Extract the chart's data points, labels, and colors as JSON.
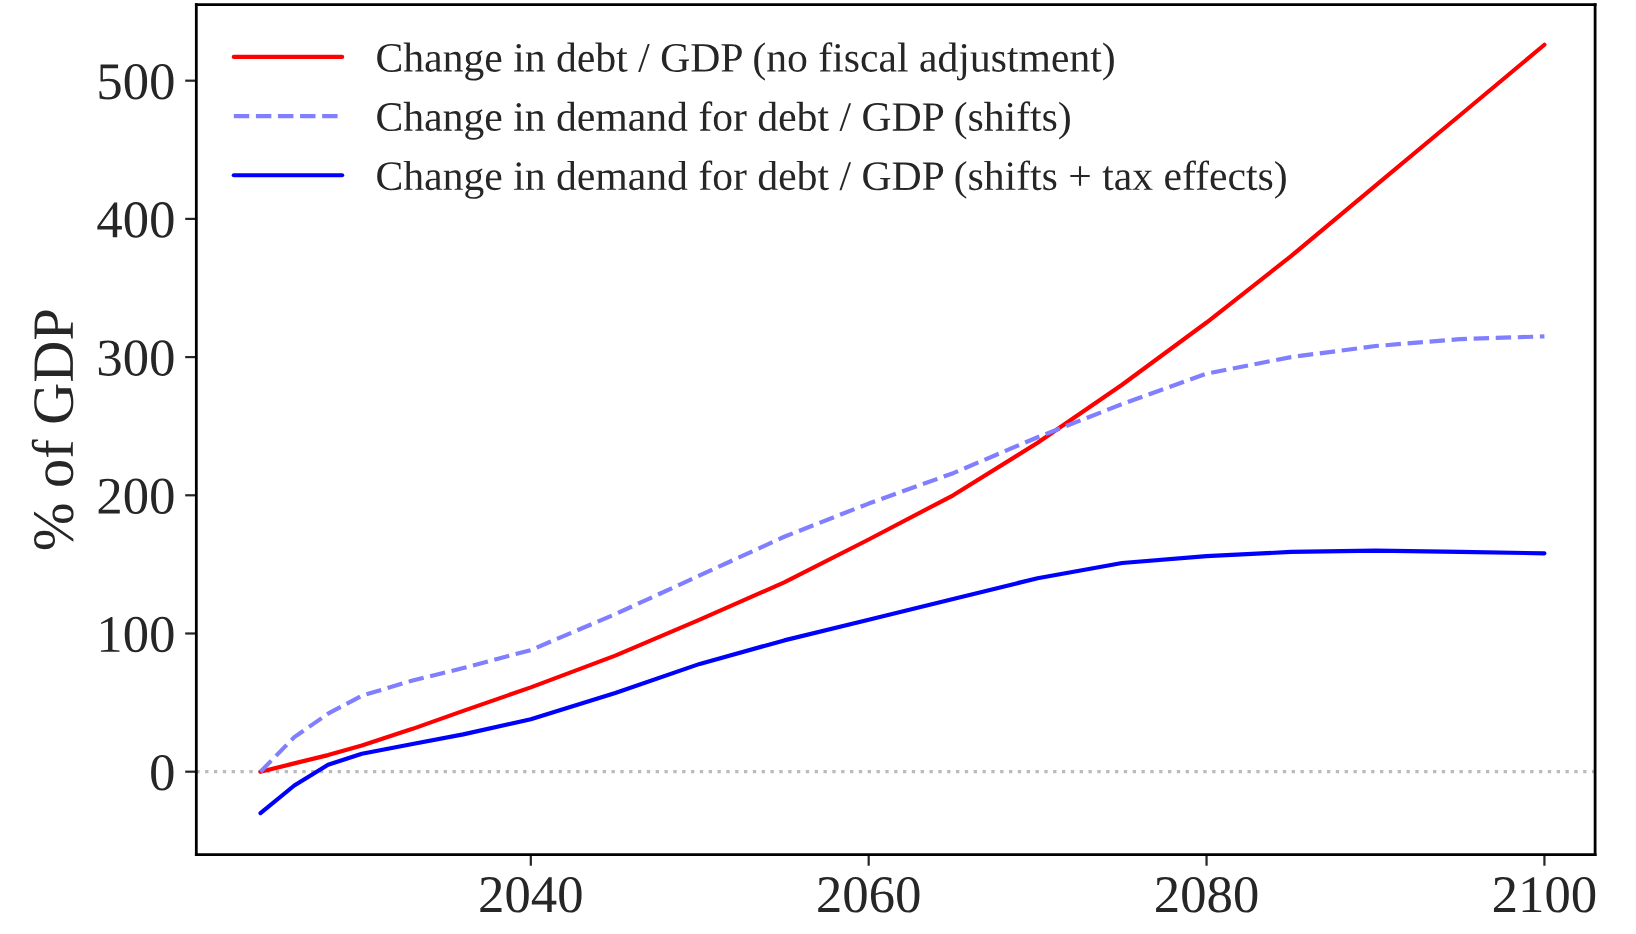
{
  "chart_data": {
    "type": "line",
    "ylabel": "% of GDP",
    "x": [
      2024,
      2026,
      2028,
      2030,
      2033,
      2036,
      2040,
      2045,
      2050,
      2055,
      2060,
      2065,
      2070,
      2075,
      2080,
      2085,
      2090,
      2095,
      2100
    ],
    "series": [
      {
        "name": "Change in debt / GDP (no fiscal adjustment)",
        "color": "#ff0000",
        "line_style": "solid",
        "values": [
          0,
          6,
          12,
          19,
          31,
          44,
          61,
          84,
          110,
          137,
          168,
          200,
          238,
          280,
          325,
          373,
          424,
          475,
          526
        ]
      },
      {
        "name": "Change in demand for debt / GDP (shifts)",
        "color": "#7f7fff",
        "line_style": "dashed",
        "values": [
          0,
          25,
          42,
          55,
          66,
          75,
          88,
          114,
          142,
          170,
          194,
          216,
          242,
          266,
          288,
          300,
          308,
          313,
          315
        ]
      },
      {
        "name": "Change in demand for debt / GDP (shifts + tax effects)",
        "color": "#0000ff",
        "line_style": "solid",
        "values": [
          -30,
          -10,
          5,
          13,
          20,
          27,
          38,
          57,
          78,
          95,
          110,
          125,
          140,
          151,
          156,
          159,
          160,
          159,
          158
        ]
      }
    ],
    "xlim": [
      2020.2,
      2103
    ],
    "xticks": [
      2040,
      2060,
      2080,
      2100
    ],
    "ylim": [
      -60,
      555
    ],
    "yticks": [
      0,
      100,
      200,
      300,
      400,
      500
    ],
    "ref_lines": [
      {
        "axis": "y",
        "value": 0,
        "color": "#bbbbbb",
        "line_style": "dotted"
      }
    ],
    "grid": false,
    "legend": "top left",
    "marker": "none"
  }
}
